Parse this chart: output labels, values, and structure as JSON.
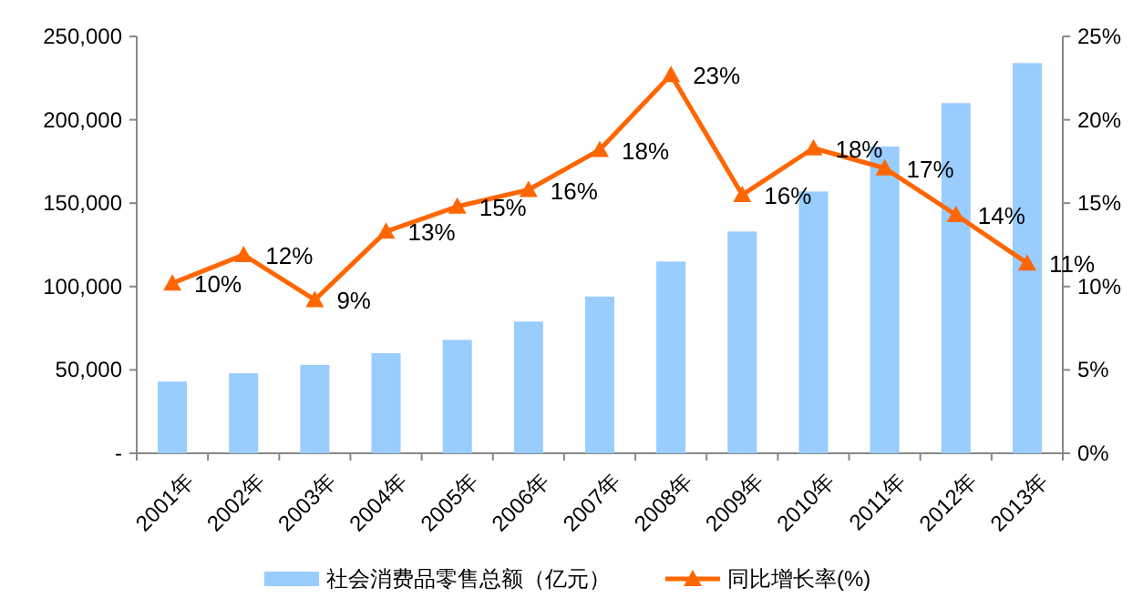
{
  "chart_data": {
    "type": "bar",
    "categories": [
      "2001年",
      "2002年",
      "2003年",
      "2004年",
      "2005年",
      "2006年",
      "2007年",
      "2008年",
      "2009年",
      "2010年",
      "2011年",
      "2012年",
      "2013年"
    ],
    "series": [
      {
        "name": "社会消费品零售总额（亿元）",
        "color": "#99ccff",
        "values": [
          43000,
          48000,
          53000,
          60000,
          68000,
          79000,
          94000,
          115000,
          133000,
          157000,
          184000,
          210000,
          234000
        ]
      },
      {
        "name": "同比增长率(%)",
        "type": "line",
        "axis": "y2",
        "color": "#ff6600",
        "marker": "triangle",
        "line_style": "solid",
        "values": [
          10.2,
          11.9,
          9.2,
          13.3,
          14.8,
          15.8,
          18.2,
          22.7,
          15.5,
          18.3,
          17.1,
          14.3,
          11.4
        ],
        "value_labels": [
          "10%",
          "12%",
          "9%",
          "13%",
          "15%",
          "16%",
          "18%",
          "23%",
          "16%",
          "18%",
          "17%",
          "14%",
          "11%"
        ]
      }
    ],
    "ylim": [
      0,
      250000
    ],
    "yticks": [
      {
        "value": 0,
        "label": "-"
      },
      {
        "value": 50000,
        "label": "50,000"
      },
      {
        "value": 100000,
        "label": "100,000"
      },
      {
        "value": 150000,
        "label": "150,000"
      },
      {
        "value": 200000,
        "label": "200,000"
      },
      {
        "value": 250000,
        "label": "250,000"
      }
    ],
    "y2lim": [
      0,
      25
    ],
    "y2ticks": [
      {
        "value": 0,
        "label": "0%"
      },
      {
        "value": 5,
        "label": "5%"
      },
      {
        "value": 10,
        "label": "10%"
      },
      {
        "value": 15,
        "label": "15%"
      },
      {
        "value": 20,
        "label": "20%"
      },
      {
        "value": 25,
        "label": "25%"
      }
    ],
    "grid": false,
    "legend": "bottom"
  }
}
